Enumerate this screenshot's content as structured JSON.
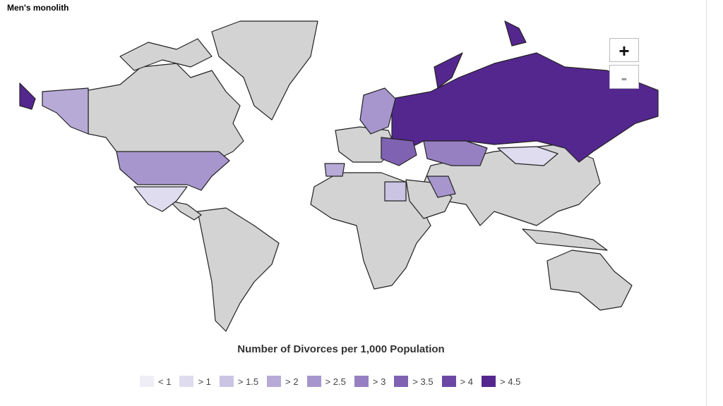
{
  "header": {
    "title": "Men's monolith"
  },
  "zoom": {
    "in": "+",
    "out": "-"
  },
  "legend": {
    "title": "Number of Divorces per 1,000 Population",
    "items": [
      {
        "label": "< 1",
        "color": "#efedf5"
      },
      {
        "label": "> 1",
        "color": "#dedcee"
      },
      {
        "label": "> 1.5",
        "color": "#cbc4e3"
      },
      {
        "label": "> 2",
        "color": "#b7aad7"
      },
      {
        "label": "> 2.5",
        "color": "#a796cd"
      },
      {
        "label": "> 3",
        "color": "#9680c2"
      },
      {
        "label": "> 3.5",
        "color": "#8062b3"
      },
      {
        "label": "> 4",
        "color": "#6c48a6"
      },
      {
        "label": "> 4.5",
        "color": "#54278f"
      }
    ]
  }
}
